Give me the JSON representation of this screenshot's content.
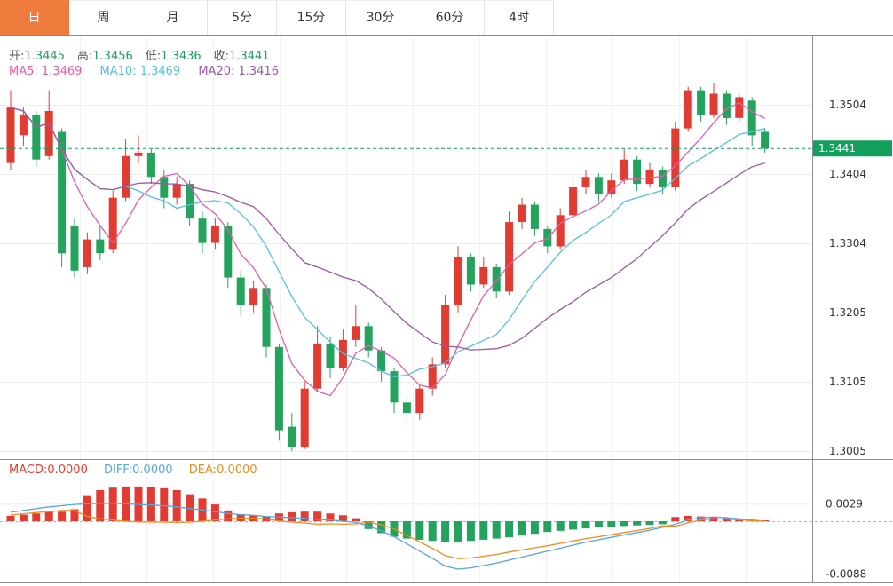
{
  "tabs": [
    {
      "key": "daily",
      "label": "日",
      "selected": true
    },
    {
      "key": "weekly",
      "label": "周",
      "selected": false
    },
    {
      "key": "monthly",
      "label": "月",
      "selected": false
    },
    {
      "key": "5min",
      "label": "5分",
      "selected": false
    },
    {
      "key": "15min",
      "label": "15分",
      "selected": false
    },
    {
      "key": "30min",
      "label": "30分",
      "selected": false
    },
    {
      "key": "60min",
      "label": "60分",
      "selected": false
    },
    {
      "key": "4hour",
      "label": "4时",
      "selected": false
    }
  ],
  "legend": {
    "ohlc": {
      "open_label": "开:",
      "open_value": "1.3445",
      "high_label": "高:",
      "high_value": "1.3456",
      "low_label": "低:",
      "low_value": "1.3436",
      "close_label": "收:",
      "close_value": "1.3441"
    },
    "ma": {
      "ma5": "MA5: 1.3469",
      "ma10": "MA10: 1.3469",
      "ma20": "MA20: 1.3416"
    },
    "macd": {
      "macd": "MACD:0.0000",
      "diff": "DIFF:0.0000",
      "dea": "DEA:0.0000"
    }
  },
  "colors": {
    "up": "#e23b32",
    "down": "#23a35d",
    "ma5": "#e65cab",
    "ma10": "#55bfe4",
    "ma20": "#9c56a5",
    "diff": "#58a6dc",
    "dea": "#ef8b1f",
    "tab_accent": "#ee7d3d",
    "price_tag": "#14a05c",
    "grid": "#ededed",
    "frame": "#8f8f8f"
  },
  "chart_data": [
    {
      "type": "candlestick",
      "title": "",
      "ohlc_order": "[open, close, high, low]",
      "price_axis_ticks": [
        "1.3504",
        "1.3404",
        "1.3304",
        "1.3205",
        "1.3105",
        "1.3005"
      ],
      "ylim": [
        1.2995,
        1.3595
      ],
      "grid": "on",
      "current_price": "1.3441",
      "ma_periods": [
        5,
        10,
        20
      ],
      "candles": [
        [
          1.342,
          1.35,
          1.3525,
          1.341
        ],
        [
          1.346,
          1.349,
          1.35,
          1.3445
        ],
        [
          1.349,
          1.3425,
          1.3495,
          1.3415
        ],
        [
          1.343,
          1.3495,
          1.3525,
          1.3425
        ],
        [
          1.3465,
          1.329,
          1.347,
          1.327
        ],
        [
          1.333,
          1.3265,
          1.334,
          1.3255
        ],
        [
          1.327,
          1.331,
          1.332,
          1.326
        ],
        [
          1.331,
          1.329,
          1.333,
          1.328
        ],
        [
          1.3295,
          1.337,
          1.338,
          1.329
        ],
        [
          1.337,
          1.343,
          1.3455,
          1.3365
        ],
        [
          1.343,
          1.3435,
          1.346,
          1.342
        ],
        [
          1.3435,
          1.34,
          1.344,
          1.339
        ],
        [
          1.34,
          1.337,
          1.341,
          1.3355
        ],
        [
          1.337,
          1.339,
          1.34,
          1.336
        ],
        [
          1.339,
          1.334,
          1.3395,
          1.333
        ],
        [
          1.334,
          1.3305,
          1.335,
          1.329
        ],
        [
          1.3305,
          1.333,
          1.334,
          1.3295
        ],
        [
          1.333,
          1.3255,
          1.3335,
          1.324
        ],
        [
          1.3255,
          1.3215,
          1.3265,
          1.32
        ],
        [
          1.3215,
          1.324,
          1.325,
          1.3205
        ],
        [
          1.324,
          1.3155,
          1.3245,
          1.314
        ],
        [
          1.3155,
          1.3035,
          1.316,
          1.302
        ],
        [
          1.304,
          1.301,
          1.306,
          1.3005
        ],
        [
          1.301,
          1.3095,
          1.3105,
          1.3008
        ],
        [
          1.3095,
          1.316,
          1.3185,
          1.309
        ],
        [
          1.316,
          1.3125,
          1.317,
          1.311
        ],
        [
          1.3125,
          1.3165,
          1.318,
          1.312
        ],
        [
          1.3165,
          1.3185,
          1.3215,
          1.3155
        ],
        [
          1.3185,
          1.315,
          1.319,
          1.314
        ],
        [
          1.315,
          1.312,
          1.3155,
          1.3105
        ],
        [
          1.312,
          1.3075,
          1.3125,
          1.306
        ],
        [
          1.3075,
          1.306,
          1.3085,
          1.3045
        ],
        [
          1.306,
          1.3095,
          1.31,
          1.305
        ],
        [
          1.3095,
          1.313,
          1.314,
          1.3085
        ],
        [
          1.313,
          1.3215,
          1.323,
          1.3125
        ],
        [
          1.3215,
          1.3285,
          1.33,
          1.3205
        ],
        [
          1.3285,
          1.3245,
          1.329,
          1.3235
        ],
        [
          1.3245,
          1.327,
          1.3285,
          1.324
        ],
        [
          1.327,
          1.3235,
          1.3275,
          1.3225
        ],
        [
          1.3235,
          1.3335,
          1.335,
          1.323
        ],
        [
          1.3335,
          1.336,
          1.337,
          1.3325
        ],
        [
          1.336,
          1.3325,
          1.3365,
          1.3315
        ],
        [
          1.3325,
          1.33,
          1.333,
          1.329
        ],
        [
          1.33,
          1.3345,
          1.3355,
          1.3295
        ],
        [
          1.3345,
          1.3385,
          1.34,
          1.334
        ],
        [
          1.3385,
          1.34,
          1.341,
          1.3375
        ],
        [
          1.34,
          1.3375,
          1.3405,
          1.3365
        ],
        [
          1.3375,
          1.3395,
          1.3405,
          1.337
        ],
        [
          1.3395,
          1.3425,
          1.344,
          1.339
        ],
        [
          1.3425,
          1.339,
          1.343,
          1.338
        ],
        [
          1.339,
          1.341,
          1.342,
          1.3385
        ],
        [
          1.341,
          1.3385,
          1.3415,
          1.3375
        ],
        [
          1.3385,
          1.347,
          1.348,
          1.338
        ],
        [
          1.347,
          1.3525,
          1.353,
          1.3465
        ],
        [
          1.3525,
          1.349,
          1.353,
          1.348
        ],
        [
          1.349,
          1.352,
          1.3535,
          1.3485
        ],
        [
          1.352,
          1.3485,
          1.3525,
          1.3475
        ],
        [
          1.3485,
          1.3515,
          1.352,
          1.348
        ],
        [
          1.351,
          1.346,
          1.3515,
          1.3445
        ],
        [
          1.3465,
          1.3441,
          1.347,
          1.3435
        ]
      ]
    },
    {
      "type": "bar",
      "name": "MACD",
      "axis_ticks": [
        "0.0029",
        "-0.0088"
      ],
      "zero_line": "dotted",
      "hist": [
        0.0009,
        0.0011,
        0.0013,
        0.0016,
        0.0016,
        0.002,
        0.0042,
        0.0052,
        0.0056,
        0.0058,
        0.0058,
        0.0057,
        0.0055,
        0.0052,
        0.0045,
        0.0038,
        0.0028,
        0.0018,
        0.0012,
        0.001,
        0.0008,
        0.0013,
        0.0015,
        0.0016,
        0.0016,
        0.0013,
        0.001,
        0.0005,
        -0.0013,
        -0.002,
        -0.0026,
        -0.0029,
        -0.0031,
        -0.0033,
        -0.0035,
        -0.0035,
        -0.0033,
        -0.0031,
        -0.0029,
        -0.0027,
        -0.0024,
        -0.0021,
        -0.0018,
        -0.0016,
        -0.0014,
        -0.0012,
        -0.001,
        -0.0009,
        -0.0008,
        -0.0007,
        -0.0006,
        -0.0005,
        0.0007,
        0.0009,
        0.0008,
        0.0007,
        0.0005,
        0.0003,
        0.0002,
        0.0
      ],
      "series": [
        {
          "name": "DIFF",
          "values": [
            0.0015,
            0.0018,
            0.0021,
            0.0024,
            0.0026,
            0.0028,
            0.0029,
            0.003,
            0.003,
            0.0029,
            0.0028,
            0.0027,
            0.0026,
            0.0024,
            0.0021,
            0.0019,
            0.0016,
            0.0013,
            0.0011,
            0.001,
            0.0008,
            0.0007,
            0.0006,
            0.0005,
            0.0003,
            0.0002,
            0.0,
            -0.0002,
            -0.0008,
            -0.0016,
            -0.0026,
            -0.0038,
            -0.005,
            -0.0062,
            -0.0075,
            -0.008,
            -0.0078,
            -0.0074,
            -0.007,
            -0.0065,
            -0.006,
            -0.0055,
            -0.005,
            -0.0045,
            -0.004,
            -0.0035,
            -0.0031,
            -0.0027,
            -0.0023,
            -0.0019,
            -0.0015,
            -0.001,
            -0.0005,
            0.0002,
            0.0006,
            0.0007,
            0.0006,
            0.0004,
            0.0002,
            0.0
          ]
        },
        {
          "name": "DEA",
          "values": [
            0.00105,
            0.00125,
            0.00145,
            0.0016,
            0.0018,
            0.0018,
            0.0008,
            0.0004,
            0.0002,
            0.0,
            -0.0001,
            -0.00015,
            -0.00015,
            -0.0002,
            -0.00015,
            0.0,
            0.0002,
            0.0004,
            0.0005,
            0.0005,
            0.0004,
            5e-05,
            -0.00015,
            -0.0003,
            -0.0005,
            -0.00045,
            -0.0005,
            -0.00045,
            -0.00015,
            -0.0006,
            -0.0013,
            -0.00235,
            -0.00345,
            -0.00455,
            -0.00575,
            -0.00625,
            -0.00615,
            -0.00585,
            -0.00555,
            -0.00515,
            -0.0048,
            -0.00445,
            -0.0041,
            -0.0037,
            -0.0033,
            -0.0029,
            -0.0026,
            -0.00225,
            -0.0019,
            -0.00155,
            -0.0012,
            -0.00075,
            -0.00085,
            -0.00025,
            0.0002,
            0.00035,
            0.00035,
            0.00025,
            0.0001,
            0.0
          ]
        }
      ]
    }
  ]
}
